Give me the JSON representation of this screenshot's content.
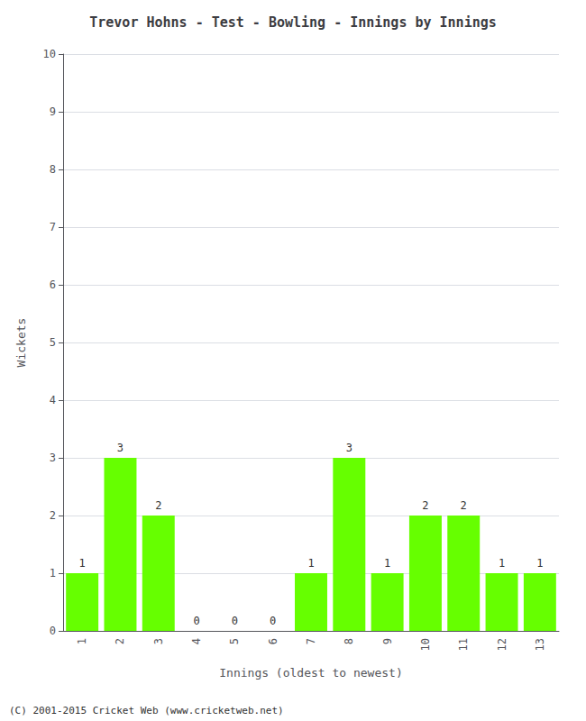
{
  "chart_data": {
    "type": "bar",
    "title": "Trevor Hohns - Test - Bowling - Innings by Innings",
    "xlabel": "Innings (oldest to newest)",
    "ylabel": "Wickets",
    "categories": [
      1,
      2,
      3,
      4,
      5,
      6,
      7,
      8,
      9,
      10,
      11,
      12,
      13
    ],
    "values": [
      1,
      3,
      2,
      0,
      0,
      0,
      1,
      3,
      1,
      2,
      2,
      1,
      1
    ],
    "color": "#66FF00",
    "ylim": [
      0,
      10
    ],
    "yticks": [
      0,
      1,
      2,
      3,
      4,
      5,
      6,
      7,
      8,
      9,
      10
    ],
    "grid": true,
    "data_labels": true,
    "annotations": [
      "(C) 2001-2015 Cricket Web (www.cricketweb.net)"
    ]
  }
}
